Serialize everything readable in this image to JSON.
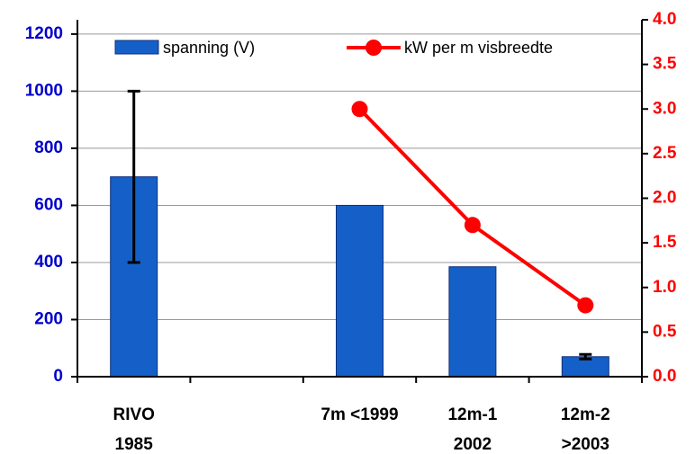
{
  "chart_data": {
    "type": "bar",
    "categories": [
      [
        "RIVO",
        "1985"
      ],
      null,
      [
        "7m <1999"
      ],
      [
        "12m-1",
        "2002"
      ],
      [
        "12m-2",
        ">2003"
      ]
    ],
    "series": [
      {
        "name": "spanning (V)",
        "type": "bar",
        "color": "#1560c8",
        "values": [
          700,
          null,
          600,
          385,
          70
        ],
        "errors": [
          300,
          null,
          null,
          null,
          8
        ]
      },
      {
        "name": "kW per m visbreedte",
        "type": "line",
        "axis": "y2",
        "color": "#ff0000",
        "values": [
          null,
          null,
          3.0,
          1.7,
          0.8
        ]
      }
    ],
    "ylim": [
      0,
      1250
    ],
    "yticks": [
      0,
      200,
      400,
      600,
      800,
      1000,
      1200
    ],
    "y2lim": [
      0,
      4
    ],
    "y2ticks": [
      {
        "value": 0,
        "label": "0.0"
      },
      0.5,
      {
        "value": 1,
        "label": "1.0"
      },
      1.5,
      {
        "value": 2,
        "label": "2.0"
      },
      2.5,
      {
        "value": 3,
        "label": "3.0"
      },
      3.5,
      {
        "value": 4,
        "label": "4.0"
      }
    ],
    "grid": true,
    "legend": "top",
    "y_tick_color": "#0000cc",
    "y2_tick_color": "#ff0000"
  }
}
